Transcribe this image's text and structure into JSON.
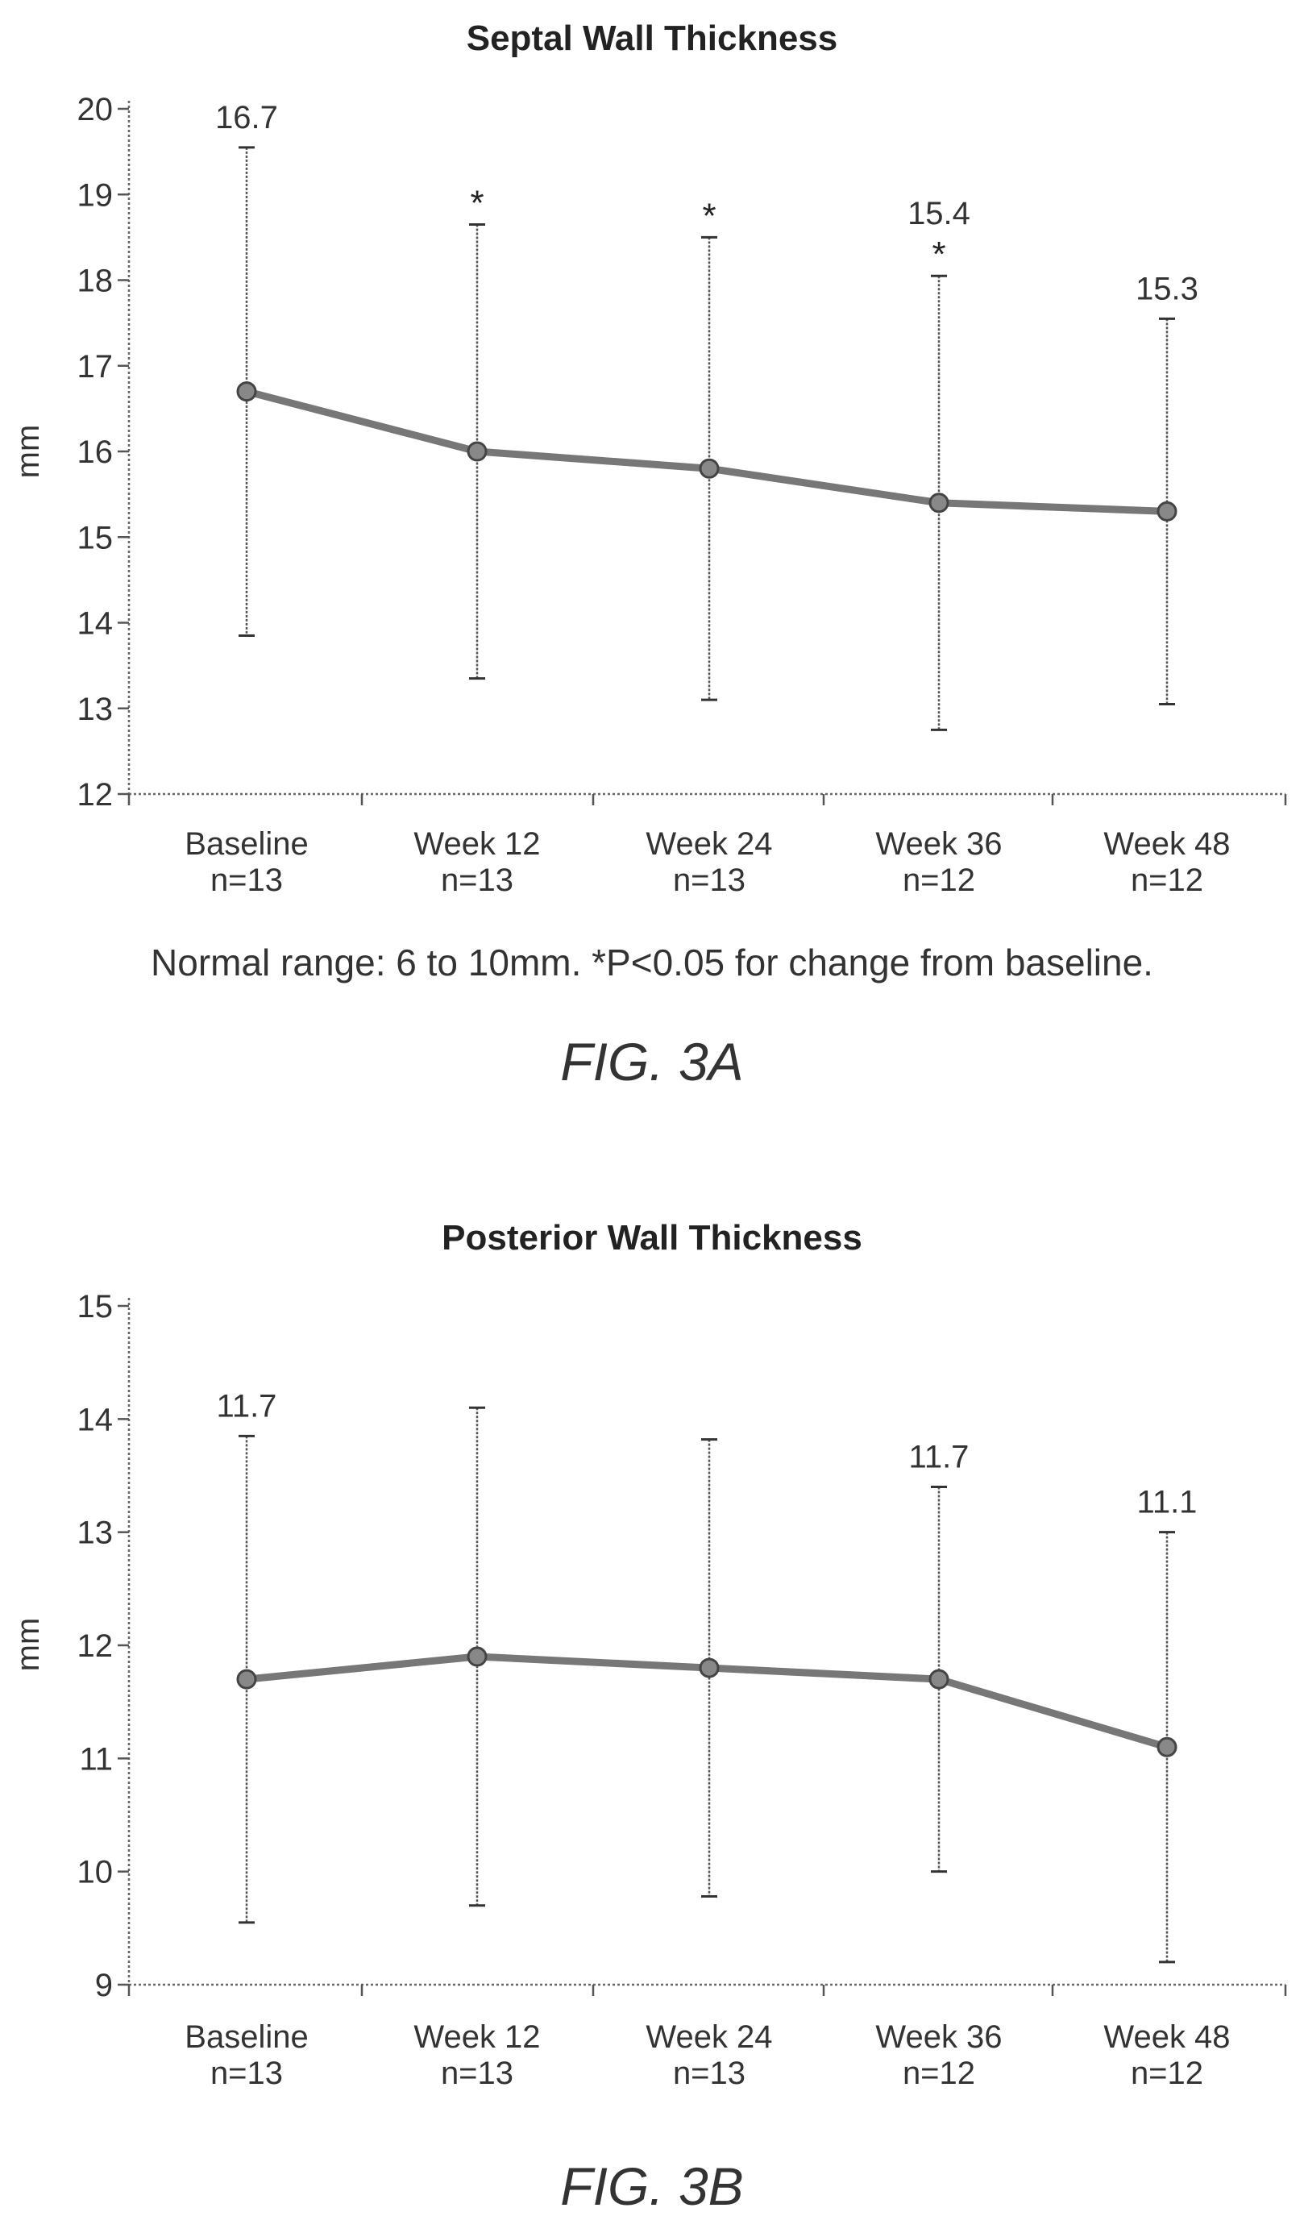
{
  "chart_data": [
    {
      "type": "line",
      "title": "Septal Wall Thickness",
      "ylabel": "mm",
      "ylim": [
        12,
        20
      ],
      "yticks": [
        12,
        13,
        14,
        15,
        16,
        17,
        18,
        19,
        20
      ],
      "categories": [
        "Baseline",
        "Week 12",
        "Week 24",
        "Week 36",
        "Week 48"
      ],
      "category_counts": [
        "n=13",
        "n=13",
        "n=13",
        "n=12",
        "n=12"
      ],
      "values": [
        16.7,
        16.0,
        15.8,
        15.4,
        15.3
      ],
      "error_low": [
        13.85,
        13.35,
        13.1,
        12.75,
        13.05
      ],
      "error_high": [
        19.55,
        18.65,
        18.5,
        18.05,
        17.55
      ],
      "data_labels": [
        "16.7",
        "",
        "",
        "15.4",
        "15.3"
      ],
      "significance": [
        "",
        "*",
        "*",
        "*",
        ""
      ],
      "note": "Normal range: 6 to 10mm.  *P<0.05 for change from baseline.",
      "figure_label": "FIG. 3A"
    },
    {
      "type": "line",
      "title": "Posterior Wall Thickness",
      "ylabel": "mm",
      "ylim": [
        9,
        15
      ],
      "yticks": [
        9,
        10,
        11,
        12,
        13,
        14,
        15
      ],
      "categories": [
        "Baseline",
        "Week 12",
        "Week 24",
        "Week 36",
        "Week 48"
      ],
      "category_counts": [
        "n=13",
        "n=13",
        "n=13",
        "n=12",
        "n=12"
      ],
      "values": [
        11.7,
        11.9,
        11.8,
        11.7,
        11.1
      ],
      "error_low": [
        9.55,
        9.7,
        9.78,
        10.0,
        9.2
      ],
      "error_high": [
        13.85,
        14.1,
        13.82,
        13.4,
        13.0
      ],
      "data_labels": [
        "11.7",
        "",
        "",
        "11.7",
        "11.1"
      ],
      "significance": [
        "",
        "",
        "",
        "",
        ""
      ],
      "note": "",
      "figure_label": "FIG. 3B"
    }
  ]
}
